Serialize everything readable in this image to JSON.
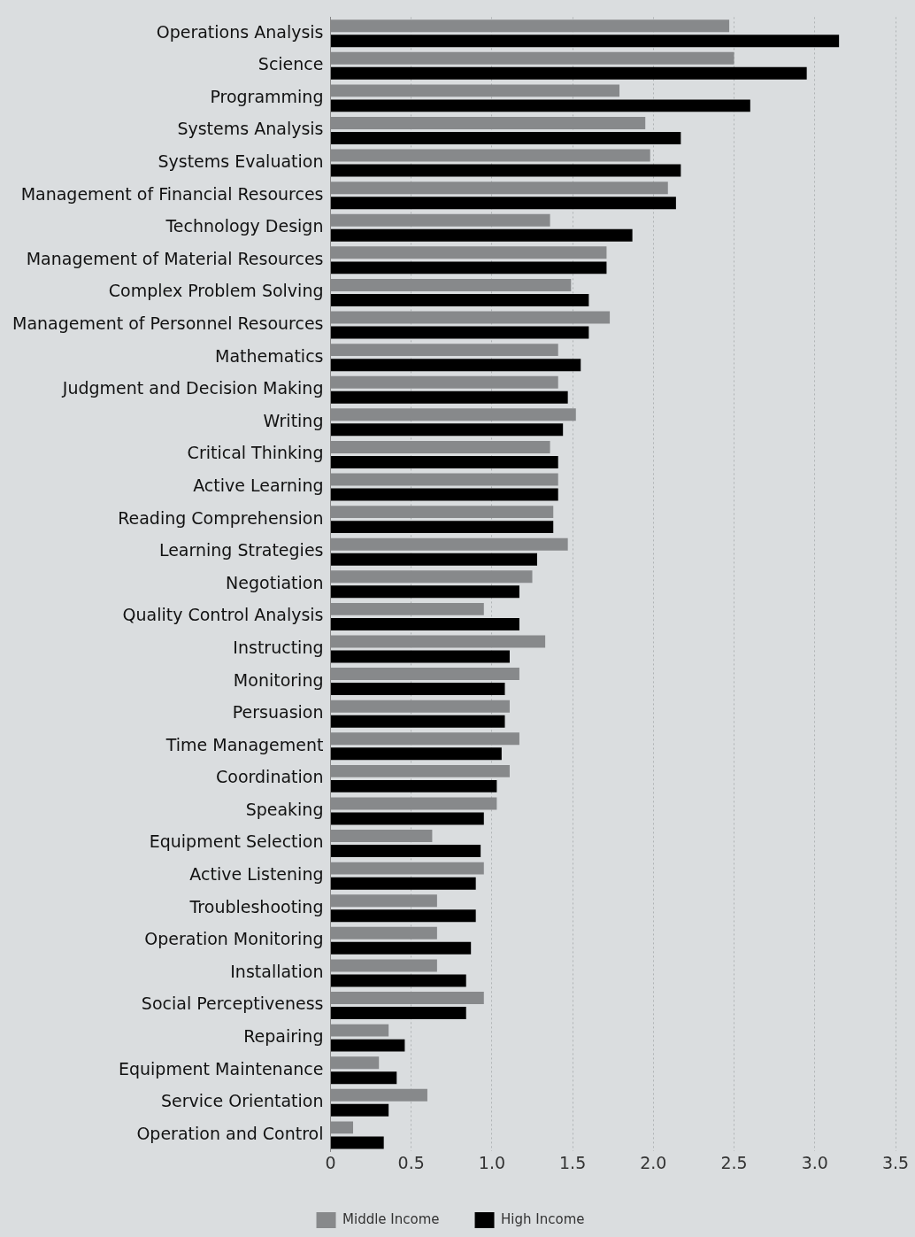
{
  "chart_data": {
    "type": "bar",
    "orientation": "horizontal",
    "categories": [
      "Operations Analysis",
      "Science",
      "Programming",
      "Systems Analysis",
      "Systems Evaluation",
      "Management of Financial Resources",
      "Technology Design",
      "Management of Material Resources",
      "Complex Problem Solving",
      "Management of Personnel Resources",
      "Mathematics",
      "Judgment and Decision Making",
      "Writing",
      "Critical Thinking",
      "Active Learning",
      "Reading Comprehension",
      "Learning Strategies",
      "Negotiation",
      "Quality Control Analysis",
      "Instructing",
      "Monitoring",
      "Persuasion",
      "Time Management",
      "Coordination",
      "Speaking",
      "Equipment Selection",
      "Active Listening",
      "Troubleshooting",
      "Operation Monitoring",
      "Installation",
      "Social Perceptiveness",
      "Repairing",
      "Equipment Maintenance",
      "Service Orientation",
      "Operation and Control"
    ],
    "series": [
      {
        "name": "Middle Income",
        "color": "#87898b",
        "values": [
          2.47,
          2.5,
          1.79,
          1.95,
          1.98,
          2.09,
          1.36,
          1.71,
          1.49,
          1.73,
          1.41,
          1.41,
          1.52,
          1.36,
          1.41,
          1.38,
          1.47,
          1.25,
          0.95,
          1.33,
          1.17,
          1.11,
          1.17,
          1.11,
          1.03,
          0.63,
          0.95,
          0.66,
          0.66,
          0.66,
          0.95,
          0.36,
          0.3,
          0.6,
          0.14
        ]
      },
      {
        "name": "High Income",
        "color": "#000000",
        "values": [
          3.15,
          2.95,
          2.6,
          2.17,
          2.17,
          2.14,
          1.87,
          1.71,
          1.6,
          1.6,
          1.55,
          1.47,
          1.44,
          1.41,
          1.41,
          1.38,
          1.28,
          1.17,
          1.17,
          1.11,
          1.08,
          1.08,
          1.06,
          1.03,
          0.95,
          0.93,
          0.9,
          0.9,
          0.87,
          0.84,
          0.84,
          0.46,
          0.41,
          0.36,
          0.33
        ]
      }
    ],
    "xlim": [
      0,
      3.5
    ],
    "xticks": [
      0,
      0.5,
      {
        "value": 1,
        "label": "1.0"
      },
      1.5,
      {
        "value": 2,
        "label": "2.0"
      },
      2.5,
      {
        "value": 3,
        "label": "3.0"
      },
      3.5
    ],
    "grid": "x",
    "legend": "bottom"
  }
}
